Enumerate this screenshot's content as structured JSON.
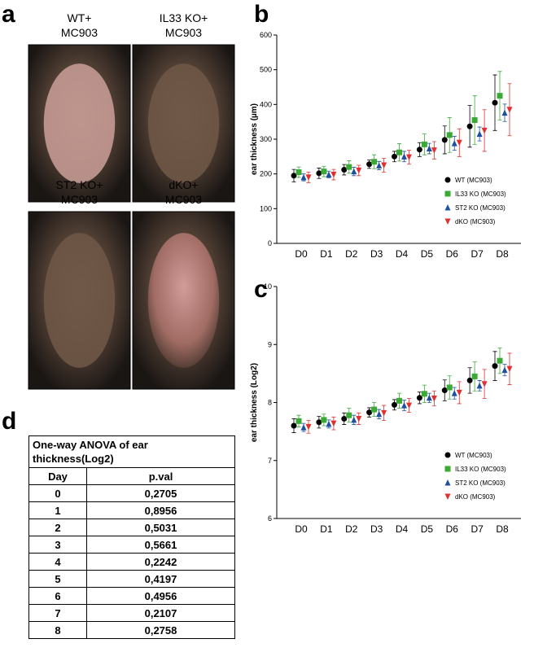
{
  "panel_labels": [
    "a",
    "b",
    "c",
    "d"
  ],
  "photos": [
    {
      "caption": [
        "WT+",
        "MC903"
      ]
    },
    {
      "caption": [
        "IL33 KO+",
        "MC903"
      ]
    },
    {
      "caption": [
        "ST2 KO+",
        "MC903"
      ]
    },
    {
      "caption": [
        "dKO+",
        "MC903"
      ]
    }
  ],
  "chart_data": [
    {
      "type": "scatter",
      "y_label": "ear thickness (µm)",
      "categories": [
        "D0",
        "D1",
        "D2",
        "D3",
        "D4",
        "D5",
        "D6",
        "D7",
        "D8"
      ],
      "ylim": [
        0,
        600
      ],
      "yticks": [
        0,
        100,
        200,
        300,
        400,
        500,
        600
      ],
      "legend": "lower right",
      "series": [
        {
          "name": "WT (MC903)",
          "color": "#000000",
          "marker": "circle",
          "values": [
            195,
            202,
            212,
            228,
            250,
            270,
            298,
            337,
            405
          ],
          "errors": [
            18,
            15,
            15,
            12,
            15,
            20,
            40,
            60,
            80
          ]
        },
        {
          "name": "IL33 KO (MC903)",
          "color": "#3aaa35",
          "marker": "square",
          "values": [
            205,
            207,
            220,
            235,
            262,
            285,
            312,
            355,
            425
          ],
          "errors": [
            15,
            15,
            18,
            20,
            25,
            30,
            50,
            70,
            70
          ]
        },
        {
          "name": "ST2 KO (MC903)",
          "color": "#1f4fa0",
          "marker": "triangle",
          "values": [
            190,
            198,
            207,
            224,
            250,
            273,
            288,
            315,
            376
          ],
          "errors": [
            10,
            10,
            12,
            12,
            15,
            15,
            20,
            20,
            25
          ]
        },
        {
          "name": "dKO (MC903)",
          "color": "#e03030",
          "marker": "triangle-down",
          "values": [
            190,
            198,
            210,
            225,
            248,
            268,
            290,
            325,
            385
          ],
          "errors": [
            15,
            15,
            15,
            20,
            20,
            25,
            40,
            60,
            75
          ]
        }
      ]
    },
    {
      "type": "scatter",
      "y_label": "ear thickness (Log2)",
      "categories": [
        "D0",
        "D1",
        "D2",
        "D3",
        "D4",
        "D5",
        "D6",
        "D7",
        "D8"
      ],
      "ylim": [
        6,
        10
      ],
      "yticks": [
        6,
        7,
        8,
        9,
        10
      ],
      "legend": "lower right",
      "series": [
        {
          "name": "WT (MC903)",
          "color": "#000000",
          "marker": "circle",
          "values": [
            7.6,
            7.66,
            7.72,
            7.83,
            7.96,
            8.08,
            8.21,
            8.38,
            8.63
          ],
          "errors": [
            0.12,
            0.1,
            0.1,
            0.08,
            0.09,
            0.1,
            0.18,
            0.22,
            0.25
          ]
        },
        {
          "name": "IL33 KO (MC903)",
          "color": "#3aaa35",
          "marker": "square",
          "values": [
            7.68,
            7.7,
            7.78,
            7.88,
            8.03,
            8.15,
            8.26,
            8.45,
            8.72
          ],
          "errors": [
            0.1,
            0.1,
            0.12,
            0.12,
            0.13,
            0.15,
            0.2,
            0.25,
            0.22
          ]
        },
        {
          "name": "ST2 KO (MC903)",
          "color": "#1f4fa0",
          "marker": "triangle",
          "values": [
            7.57,
            7.63,
            7.7,
            7.8,
            7.95,
            8.08,
            8.16,
            8.29,
            8.56
          ],
          "errors": [
            0.07,
            0.07,
            0.08,
            0.08,
            0.09,
            0.08,
            0.1,
            0.09,
            0.1
          ]
        },
        {
          "name": "dKO (MC903)",
          "color": "#e03030",
          "marker": "triangle-down",
          "values": [
            7.58,
            7.64,
            7.72,
            7.82,
            7.95,
            8.07,
            8.17,
            8.32,
            8.58
          ],
          "errors": [
            0.11,
            0.11,
            0.1,
            0.13,
            0.12,
            0.13,
            0.19,
            0.25,
            0.27
          ]
        }
      ]
    }
  ],
  "table": {
    "title": "One-way ANOVA of ear thickness(Log2)",
    "header": [
      "Day",
      "p.val"
    ],
    "rows": [
      [
        "0",
        "0,2705"
      ],
      [
        "1",
        "0,8956"
      ],
      [
        "2",
        "0,5031"
      ],
      [
        "3",
        "0,5661"
      ],
      [
        "4",
        "0,2242"
      ],
      [
        "5",
        "0,4197"
      ],
      [
        "6",
        "0,4956"
      ],
      [
        "7",
        "0,2107"
      ],
      [
        "8",
        "0,2758"
      ]
    ]
  }
}
